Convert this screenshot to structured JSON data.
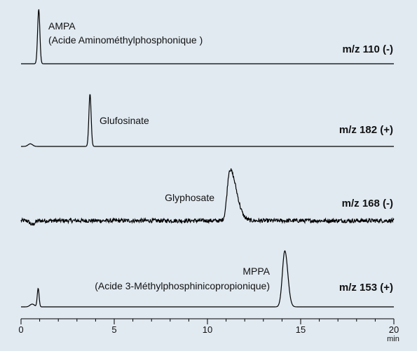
{
  "chart_data": {
    "type": "line",
    "colors": {
      "background": "#e1eaf1",
      "trace": "#000000"
    },
    "x_axis": {
      "range": [
        0,
        20
      ],
      "ticks": [
        0,
        5,
        10,
        15,
        20
      ],
      "unit": "min",
      "grid": false
    },
    "traces": [
      {
        "name": "AMPA",
        "name_detail": "(Acide Aminométhylphosphonique )",
        "ion": "m/z 110 (-)",
        "noise": 0.0,
        "peaks": [
          {
            "t": 0.95,
            "height": 1.0,
            "width": 0.06,
            "tail": 0.06
          }
        ]
      },
      {
        "name": "Glufosinate",
        "ion": "m/z 182 (+)",
        "noise": 0.0,
        "disturbances": [
          {
            "t": 0.5,
            "amp": 0.05
          }
        ],
        "peaks": [
          {
            "t": 3.7,
            "height": 1.0,
            "width": 0.06,
            "tail": 0.06
          }
        ]
      },
      {
        "name": "Glyphosate",
        "ion": "m/z 168 (-)",
        "noise": 0.04,
        "disturbances": [
          {
            "t": 0.6,
            "amp": -0.08
          }
        ],
        "peaks": [
          {
            "t": 11.2,
            "height": 1.0,
            "width": 0.14,
            "tail": 0.35
          }
        ]
      },
      {
        "name": "MPPA",
        "name_detail": "(Acide 3-Méthylphosphinicopropionique)",
        "ion": "m/z 153 (+)",
        "noise": 0.0,
        "disturbances": [
          {
            "t": 0.6,
            "amp": 0.05
          }
        ],
        "peaks": [
          {
            "t": 0.92,
            "height": 0.33,
            "width": 0.05,
            "tail": 0.05
          },
          {
            "t": 14.15,
            "height": 1.0,
            "width": 0.13,
            "tail": 0.16
          }
        ]
      }
    ]
  }
}
